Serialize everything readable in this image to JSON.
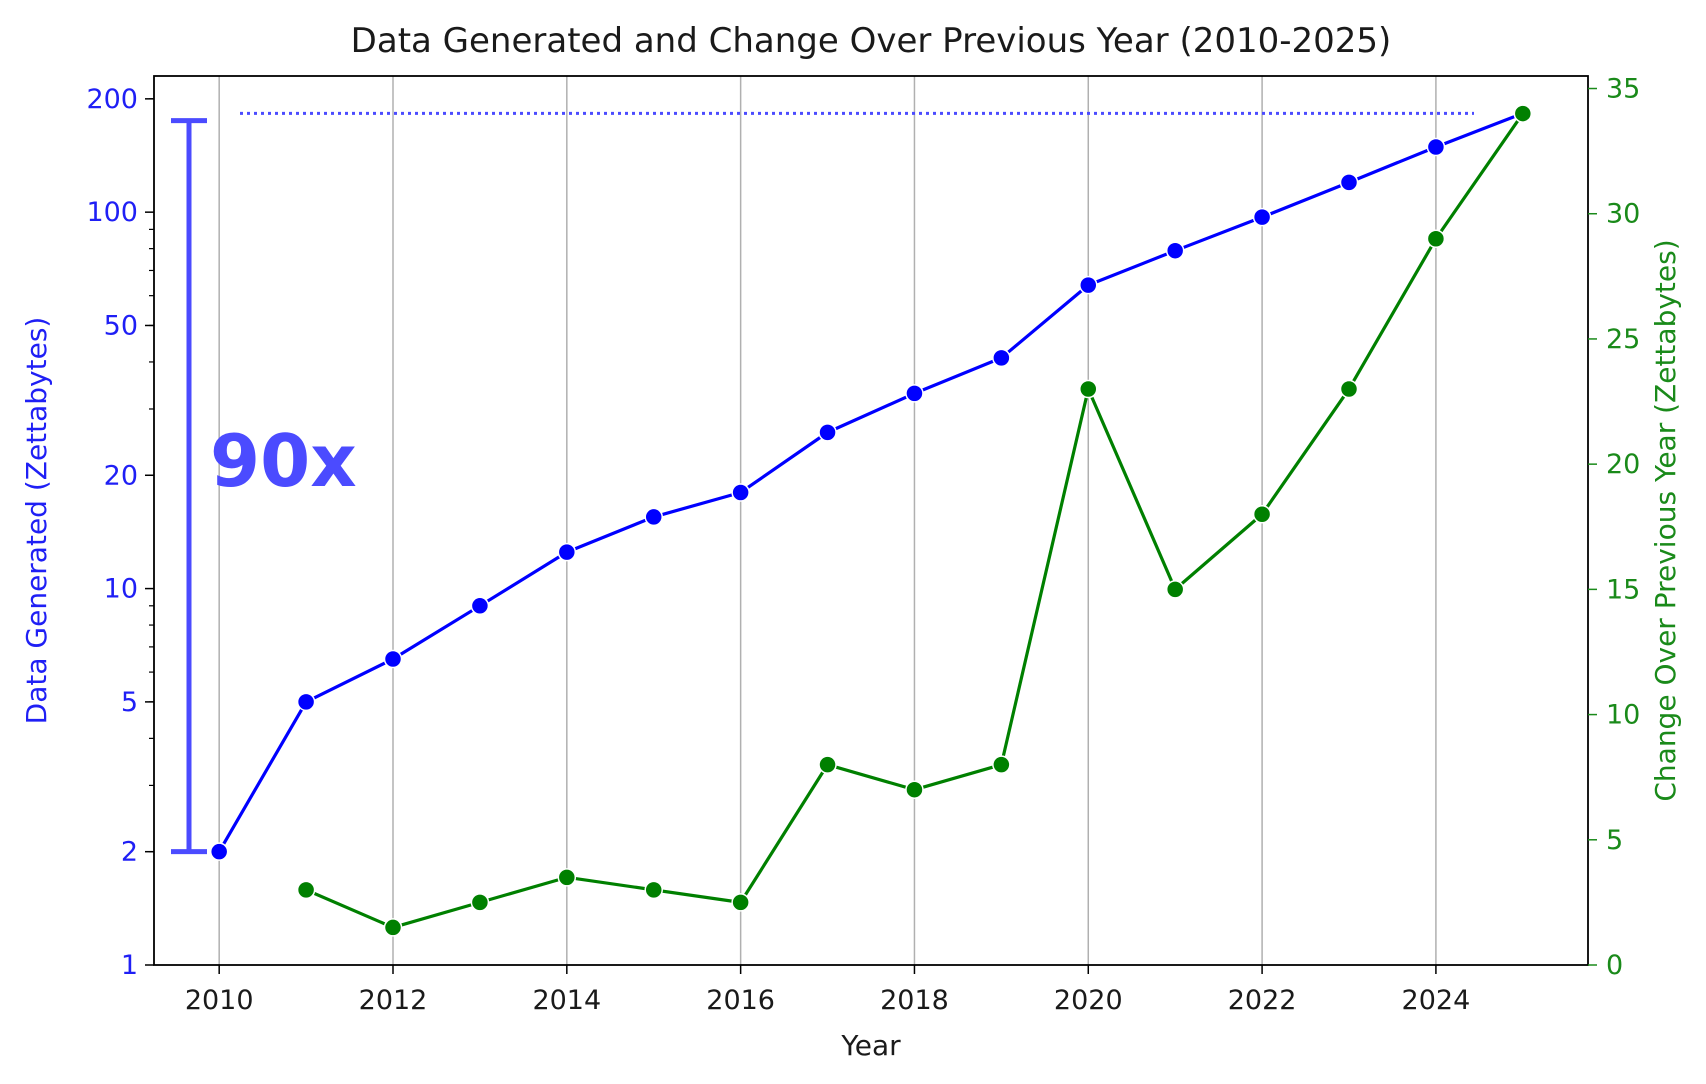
{
  "chart_data": {
    "type": "line",
    "title": "Data Generated and Change Over Previous Year (2010-2025)",
    "xlabel": "Year",
    "ylabel_left": "Data Generated (Zettabytes)",
    "ylabel_right": "Change Over Previous Year (Zettabytes)",
    "x": [
      2010,
      2011,
      2012,
      2013,
      2014,
      2015,
      2016,
      2017,
      2018,
      2019,
      2020,
      2021,
      2022,
      2023,
      2024,
      2025
    ],
    "xlim": [
      2009.25,
      2025.75
    ],
    "x_ticks": [
      2010,
      2012,
      2014,
      2016,
      2018,
      2020,
      2022,
      2024
    ],
    "left_axis": {
      "scale": "log",
      "ylim": [
        1,
        230
      ],
      "ticks": [
        1,
        2,
        5,
        10,
        20,
        50,
        100,
        200
      ],
      "color": "#1f1ff5"
    },
    "right_axis": {
      "scale": "linear",
      "ylim": [
        0,
        35.5
      ],
      "ticks": [
        0,
        5,
        10,
        15,
        20,
        25,
        30,
        35
      ],
      "color": "#1a8a1a"
    },
    "grid": "vertical",
    "series": [
      {
        "axis": "left",
        "color": "#0000ff",
        "values": [
          2,
          5,
          6.5,
          9,
          12.5,
          15.5,
          18,
          26,
          33,
          41,
          64,
          79,
          97,
          120,
          149,
          183
        ]
      },
      {
        "axis": "right",
        "color": "#008000",
        "values": [
          null,
          3,
          1.5,
          2.5,
          3.5,
          3,
          2.5,
          8,
          7,
          8,
          23,
          15,
          18,
          23,
          29,
          34
        ]
      }
    ],
    "annotation": {
      "text": "90x",
      "color": "#4b4bff",
      "span_low": 2,
      "span_high": 175,
      "reference_value": 183
    }
  }
}
